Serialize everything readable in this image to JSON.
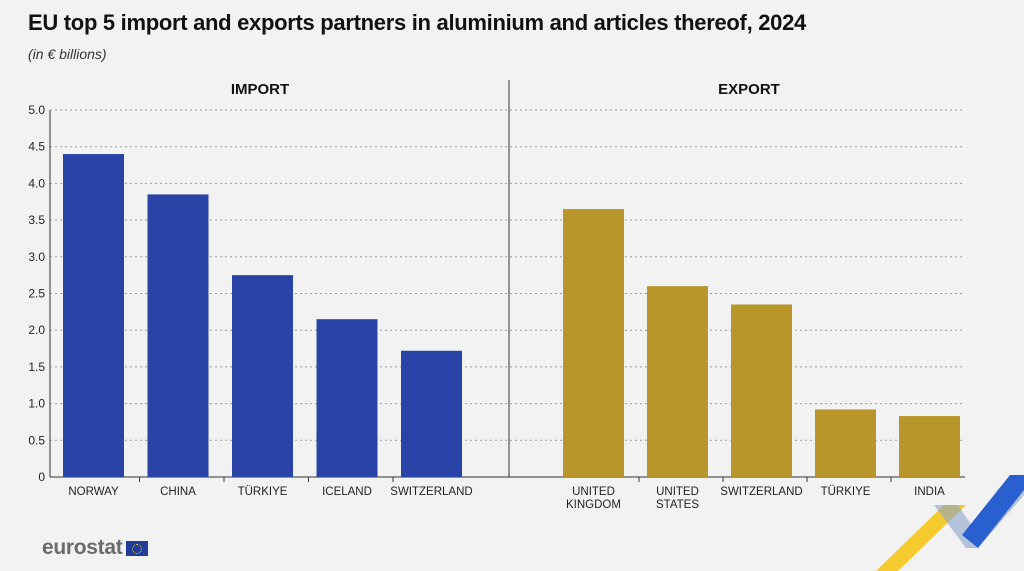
{
  "title": "EU top 5 import and exports partners in aluminium and articles thereof, 2024",
  "subtitle": "(in € billions)",
  "brand": {
    "logo_text": "eurostat",
    "flag_icon": "eu-flag-icon"
  },
  "colors": {
    "import": "#2a43a6",
    "export": "#b8962a",
    "background": "#f2f2f2"
  },
  "chart_data": [
    {
      "type": "bar",
      "panel_label": "IMPORT",
      "categories": [
        "NORWAY",
        "CHINA",
        "TÜRKIYE",
        "ICELAND",
        "SWITZERLAND"
      ],
      "values": [
        4.4,
        3.85,
        2.75,
        2.15,
        1.72
      ],
      "yticks": [
        "0",
        "0.5",
        "1.0",
        "1.5",
        "2.0",
        "2.5",
        "3.0",
        "3.5",
        "4.0",
        "4.5",
        "5.0"
      ],
      "ylim": [
        0,
        5
      ],
      "grid": true
    },
    {
      "type": "bar",
      "panel_label": "EXPORT",
      "categories": [
        "UNITED KINGDOM",
        "UNITED STATES",
        "SWITZERLAND",
        "TÜRKIYE",
        "INDIA"
      ],
      "category_lines": [
        [
          "UNITED",
          "KINGDOM"
        ],
        [
          "UNITED",
          "STATES"
        ],
        [
          "SWITZERLAND"
        ],
        [
          "TÜRKIYE"
        ],
        [
          "INDIA"
        ]
      ],
      "values": [
        3.65,
        2.6,
        2.35,
        0.92,
        0.83
      ],
      "ylim": [
        0,
        5
      ],
      "grid": true
    }
  ]
}
